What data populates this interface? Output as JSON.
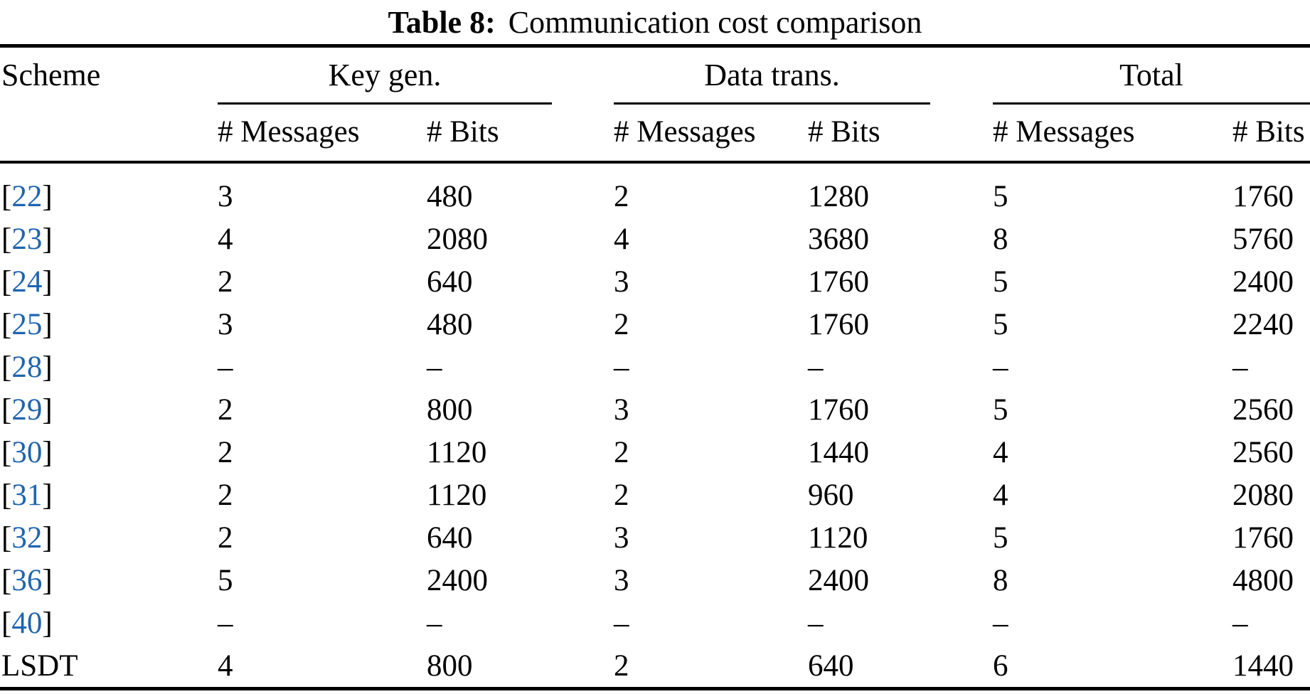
{
  "caption": {
    "label": "Table 8:",
    "title": "Communication cost comparison"
  },
  "colors": {
    "citation_blue": "#1e65b0",
    "text": "#000000",
    "rule": "#000000",
    "background": "#ffffff"
  },
  "brackets": {
    "open": "[",
    "close": "]"
  },
  "columns": {
    "scheme": "Scheme",
    "groups": [
      {
        "label": "Key gen.",
        "subcolumns": [
          "# Messages",
          "# Bits"
        ]
      },
      {
        "label": "Data trans.",
        "subcolumns": [
          "# Messages",
          "# Bits"
        ]
      },
      {
        "label": "Total",
        "subcolumns": [
          "# Messages",
          "# Bits"
        ]
      }
    ]
  },
  "rows": [
    {
      "cite": "22",
      "values": [
        "3",
        "480",
        "2",
        "1280",
        "5",
        "1760"
      ]
    },
    {
      "cite": "23",
      "values": [
        "4",
        "2080",
        "4",
        "3680",
        "8",
        "5760"
      ]
    },
    {
      "cite": "24",
      "values": [
        "2",
        "640",
        "3",
        "1760",
        "5",
        "2400"
      ]
    },
    {
      "cite": "25",
      "values": [
        "3",
        "480",
        "2",
        "1760",
        "5",
        "2240"
      ]
    },
    {
      "cite": "28",
      "values": [
        "–",
        "–",
        "–",
        "–",
        "–",
        "–"
      ]
    },
    {
      "cite": "29",
      "values": [
        "2",
        "800",
        "3",
        "1760",
        "5",
        "2560"
      ]
    },
    {
      "cite": "30",
      "values": [
        "2",
        "1120",
        "2",
        "1440",
        "4",
        "2560"
      ]
    },
    {
      "cite": "31",
      "values": [
        "2",
        "1120",
        "2",
        "960",
        "4",
        "2080"
      ]
    },
    {
      "cite": "32",
      "values": [
        "2",
        "640",
        "3",
        "1120",
        "5",
        "1760"
      ]
    },
    {
      "cite": "36",
      "values": [
        "5",
        "2400",
        "3",
        "2400",
        "8",
        "4800"
      ]
    },
    {
      "cite": "40",
      "values": [
        "–",
        "–",
        "–",
        "–",
        "–",
        "–"
      ]
    },
    {
      "label": "LSDT",
      "values": [
        "4",
        "800",
        "2",
        "640",
        "6",
        "1440"
      ]
    }
  ]
}
